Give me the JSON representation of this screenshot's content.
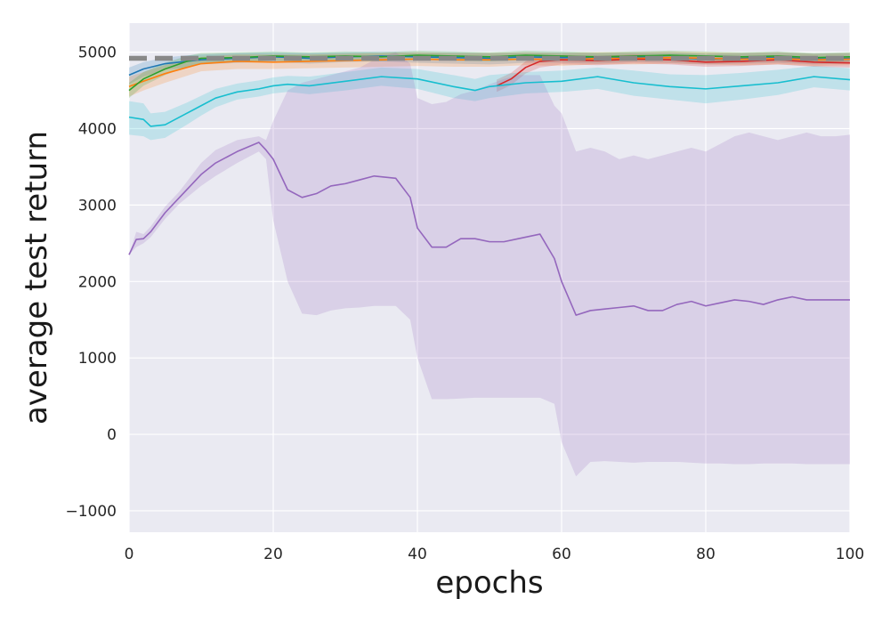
{
  "chart_data": {
    "type": "line",
    "title": "",
    "xlabel": "epochs",
    "ylabel": "average test return",
    "xlim": [
      0,
      100
    ],
    "ylim": [
      -1280,
      5380
    ],
    "xticks": [
      0,
      20,
      40,
      60,
      80,
      100
    ],
    "yticks": [
      -1000,
      0,
      1000,
      2000,
      3000,
      4000,
      5000
    ],
    "xtick_labels": [
      "0",
      "20",
      "40",
      "60",
      "80",
      "100"
    ],
    "ytick_labels": [
      "−1000",
      "0",
      "1000",
      "2000",
      "3000",
      "4000",
      "5000"
    ],
    "grid": true,
    "style": {
      "background": "#EAEAF2",
      "grid_color": "#FFFFFF"
    },
    "baseline": {
      "y": 4920,
      "color": "#888888",
      "dashed": true
    },
    "series": [
      {
        "color": "#1F77B4",
        "x": [
          0,
          2,
          5,
          8,
          10,
          15,
          20,
          25,
          30,
          35,
          40,
          45,
          50,
          55,
          60,
          65,
          70,
          75,
          80,
          85,
          90,
          95,
          100
        ],
        "y": [
          4700,
          4780,
          4850,
          4880,
          4900,
          4920,
          4940,
          4920,
          4940,
          4950,
          4940,
          4930,
          4920,
          4940,
          4930,
          4920,
          4940,
          4930,
          4910,
          4920,
          4930,
          4910,
          4920
        ],
        "lower": [
          4580,
          4680,
          4770,
          4800,
          4840,
          4860,
          4870,
          4850,
          4870,
          4880,
          4860,
          4850,
          4840,
          4860,
          4860,
          4850,
          4870,
          4860,
          4840,
          4850,
          4860,
          4840,
          4850
        ],
        "upper": [
          4800,
          4870,
          4930,
          4960,
          4970,
          4990,
          5000,
          4990,
          5000,
          5010,
          5000,
          5000,
          4990,
          5000,
          5000,
          4990,
          5000,
          5000,
          4980,
          4990,
          5000,
          4980,
          4990
        ]
      },
      {
        "color": "#FF7F0E",
        "x": [
          0,
          2,
          5,
          8,
          10,
          15,
          20,
          25,
          30,
          35,
          40,
          45,
          50,
          55,
          60,
          65,
          70,
          75,
          80,
          85,
          90,
          95,
          100
        ],
        "y": [
          4550,
          4620,
          4720,
          4800,
          4850,
          4880,
          4870,
          4880,
          4890,
          4900,
          4910,
          4900,
          4900,
          4910,
          4900,
          4920,
          4920,
          4930,
          4920,
          4910,
          4920,
          4900,
          4910
        ],
        "lower": [
          4420,
          4500,
          4600,
          4690,
          4750,
          4780,
          4780,
          4790,
          4800,
          4810,
          4820,
          4810,
          4810,
          4830,
          4820,
          4840,
          4840,
          4850,
          4840,
          4830,
          4840,
          4820,
          4830
        ],
        "upper": [
          4680,
          4740,
          4830,
          4900,
          4940,
          4970,
          4970,
          4970,
          4980,
          4990,
          5000,
          4990,
          4990,
          5000,
          4990,
          5000,
          5000,
          5010,
          5000,
          4990,
          5000,
          4980,
          4990
        ]
      },
      {
        "color": "#2CA02C",
        "x": [
          0,
          2,
          5,
          8,
          10,
          15,
          20,
          25,
          30,
          35,
          40,
          45,
          50,
          55,
          60,
          65,
          70,
          75,
          80,
          85,
          90,
          95,
          100
        ],
        "y": [
          4500,
          4650,
          4780,
          4880,
          4920,
          4930,
          4950,
          4940,
          4950,
          4940,
          4960,
          4950,
          4940,
          4960,
          4950,
          4940,
          4950,
          4960,
          4950,
          4940,
          4950,
          4930,
          4940
        ],
        "lower": [
          4400,
          4560,
          4700,
          4810,
          4850,
          4870,
          4890,
          4880,
          4890,
          4880,
          4900,
          4890,
          4880,
          4900,
          4890,
          4880,
          4890,
          4900,
          4890,
          4880,
          4890,
          4870,
          4880
        ],
        "upper": [
          4600,
          4740,
          4860,
          4950,
          4990,
          5000,
          5010,
          5000,
          5010,
          5000,
          5020,
          5010,
          5000,
          5020,
          5010,
          5000,
          5010,
          5020,
          5010,
          5000,
          5010,
          4990,
          5000
        ]
      },
      {
        "color": "#D62728",
        "x": [
          51,
          53,
          55,
          57,
          60,
          65,
          70,
          75,
          80,
          85,
          90,
          95,
          100
        ],
        "y": [
          4560,
          4650,
          4800,
          4880,
          4900,
          4890,
          4910,
          4900,
          4870,
          4880,
          4900,
          4870,
          4860
        ],
        "lower": [
          4480,
          4570,
          4720,
          4800,
          4840,
          4830,
          4850,
          4840,
          4810,
          4820,
          4840,
          4810,
          4800
        ],
        "upper": [
          4640,
          4730,
          4880,
          4950,
          4960,
          4950,
          4970,
          4960,
          4930,
          4940,
          4960,
          4930,
          4920
        ]
      },
      {
        "color": "#17BECF",
        "x": [
          0,
          2,
          3,
          5,
          8,
          10,
          12,
          15,
          18,
          20,
          22,
          25,
          30,
          35,
          40,
          45,
          48,
          50,
          55,
          60,
          65,
          70,
          75,
          80,
          85,
          90,
          95,
          100
        ],
        "y": [
          4150,
          4120,
          4030,
          4050,
          4200,
          4300,
          4400,
          4480,
          4520,
          4560,
          4580,
          4560,
          4620,
          4680,
          4650,
          4550,
          4500,
          4550,
          4600,
          4620,
          4680,
          4600,
          4550,
          4520,
          4560,
          4600,
          4680,
          4640
        ],
        "lower": [
          3920,
          3900,
          3850,
          3880,
          4050,
          4170,
          4280,
          4380,
          4420,
          4460,
          4480,
          4450,
          4500,
          4560,
          4520,
          4400,
          4360,
          4400,
          4460,
          4480,
          4520,
          4430,
          4380,
          4330,
          4380,
          4440,
          4540,
          4500
        ],
        "upper": [
          4360,
          4330,
          4200,
          4220,
          4340,
          4430,
          4520,
          4590,
          4630,
          4670,
          4690,
          4680,
          4740,
          4800,
          4780,
          4700,
          4650,
          4700,
          4740,
          4760,
          4800,
          4760,
          4710,
          4700,
          4730,
          4770,
          4820,
          4790
        ]
      },
      {
        "color": "#9467BD",
        "x": [
          0,
          1,
          2,
          3,
          5,
          7,
          10,
          12,
          15,
          18,
          19,
          20,
          22,
          24,
          26,
          28,
          30,
          32,
          34,
          37,
          39,
          40,
          42,
          44,
          46,
          48,
          50,
          52,
          54,
          57,
          59,
          60,
          62,
          64,
          66,
          68,
          70,
          72,
          74,
          76,
          78,
          80,
          82,
          84,
          86,
          88,
          90,
          92,
          94,
          96,
          98,
          100
        ],
        "y": [
          2350,
          2550,
          2560,
          2650,
          2900,
          3100,
          3400,
          3550,
          3700,
          3820,
          3720,
          3600,
          3200,
          3100,
          3150,
          3250,
          3280,
          3330,
          3380,
          3350,
          3100,
          2700,
          2450,
          2450,
          2560,
          2560,
          2520,
          2520,
          2560,
          2620,
          2300,
          2000,
          1560,
          1620,
          1640,
          1660,
          1680,
          1620,
          1620,
          1700,
          1740,
          1680,
          1720,
          1760,
          1740,
          1700,
          1760,
          1800,
          1760,
          1760,
          1760,
          1760
        ],
        "lower": [
          2350,
          2450,
          2500,
          2580,
          2820,
          3020,
          3250,
          3380,
          3550,
          3700,
          3600,
          2800,
          2000,
          1580,
          1560,
          1620,
          1650,
          1660,
          1680,
          1680,
          1500,
          1000,
          460,
          460,
          470,
          480,
          480,
          480,
          480,
          480,
          400,
          -100,
          -550,
          -360,
          -350,
          -360,
          -370,
          -360,
          -360,
          -360,
          -370,
          -380,
          -380,
          -390,
          -390,
          -380,
          -380,
          -380,
          -390,
          -390,
          -390,
          -390
        ],
        "upper": [
          2350,
          2650,
          2620,
          2720,
          2980,
          3180,
          3550,
          3720,
          3850,
          3900,
          3850,
          4100,
          4500,
          4600,
          4650,
          4700,
          4750,
          4800,
          4900,
          5000,
          4850,
          4400,
          4320,
          4350,
          4450,
          4500,
          4580,
          4650,
          4700,
          4700,
          4300,
          4200,
          3700,
          3750,
          3700,
          3600,
          3650,
          3600,
          3650,
          3700,
          3750,
          3700,
          3800,
          3900,
          3950,
          3900,
          3850,
          3900,
          3950,
          3900,
          3900,
          3920
        ]
      }
    ]
  }
}
